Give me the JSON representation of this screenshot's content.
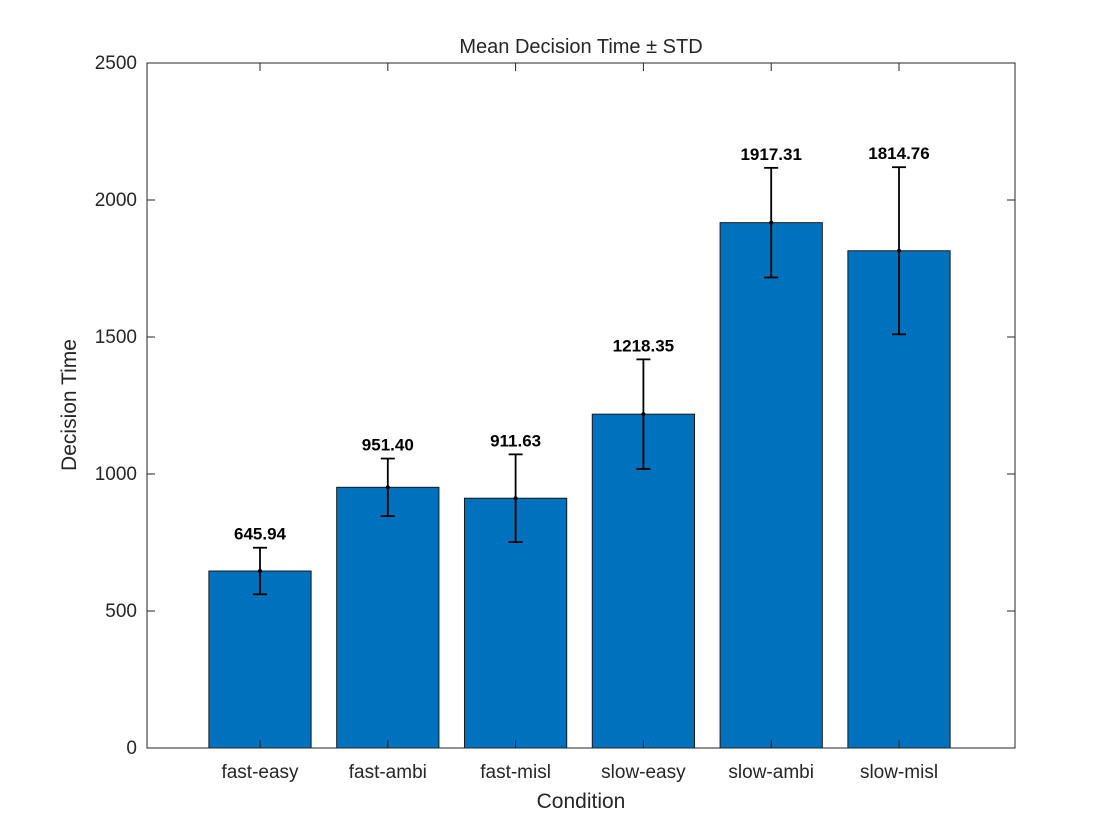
{
  "chart_data": {
    "type": "bar",
    "title": "Mean Decision Time ± STD",
    "xlabel": "Condition",
    "ylabel": "Decision Time",
    "categories": [
      "fast-easy",
      "fast-ambi",
      "fast-misl",
      "slow-easy",
      "slow-ambi",
      "slow-misl"
    ],
    "values": [
      645.94,
      951.4,
      911.63,
      1218.35,
      1917.31,
      1814.76
    ],
    "data_labels": [
      "645.94",
      "951.40",
      "911.63",
      "1218.35",
      "1917.31",
      "1814.76"
    ],
    "std": [
      85,
      105,
      160,
      200,
      200,
      305
    ],
    "ylim": [
      0,
      2500
    ],
    "yticks": [
      0,
      500,
      1000,
      1500,
      2000,
      2500
    ],
    "ytick_labels": [
      "0",
      "500",
      "1000",
      "1500",
      "2000",
      "2500"
    ],
    "grid": false,
    "legend": "none",
    "bar_color": "#0072BD",
    "error_bar_color": "#000000"
  }
}
